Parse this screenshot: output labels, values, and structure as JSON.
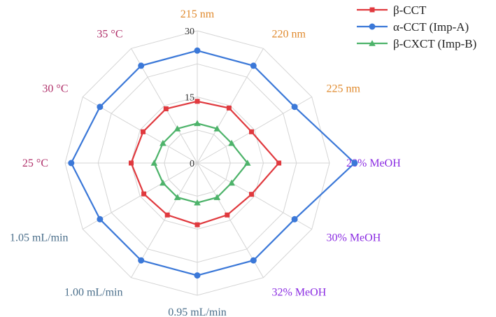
{
  "chart_data": {
    "type": "radar",
    "axes": [
      {
        "label": "215 nm",
        "color": "#E08A2E"
      },
      {
        "label": "220 nm",
        "color": "#E08A2E"
      },
      {
        "label": "225 nm",
        "color": "#E08A2E"
      },
      {
        "label": "28% MeOH",
        "color": "#8A2BE2"
      },
      {
        "label": "30% MeOH",
        "color": "#8A2BE2"
      },
      {
        "label": "32% MeOH",
        "color": "#8A2BE2"
      },
      {
        "label": "0.95 mL/min",
        "color": "#4A6E8A"
      },
      {
        "label": "1.00 mL/min",
        "color": "#4A6E8A"
      },
      {
        "label": "1.05 mL/min",
        "color": "#4A6E8A"
      },
      {
        "label": "25 °C",
        "color": "#B0306A"
      },
      {
        "label": "30 °C",
        "color": "#B0306A"
      },
      {
        "label": "35 °C",
        "color": "#B0306A"
      }
    ],
    "range": [
      0,
      30
    ],
    "ticks": [
      0,
      15,
      30
    ],
    "grid_rings": [
      7.5,
      15,
      22.5,
      30
    ],
    "series": [
      {
        "name": "β-CCT",
        "color": "#E0393E",
        "marker": "square",
        "values": [
          14.0,
          14.4,
          14.2,
          18.5,
          14.2,
          13.6,
          14.0,
          13.6,
          14.0,
          15.0,
          14.2,
          14.2
        ]
      },
      {
        "name": "α-CCT (Imp-A)",
        "color": "#3B78D8",
        "marker": "circle",
        "values": [
          25.5,
          25.5,
          25.5,
          35.7,
          25.5,
          25.5,
          25.5,
          25.5,
          25.5,
          28.6,
          25.5,
          25.5
        ]
      },
      {
        "name": "β-CXCT (Imp-B)",
        "color": "#4DB36A",
        "marker": "triangle",
        "values": [
          9.0,
          9.0,
          9.0,
          11.4,
          9.0,
          9.0,
          9.0,
          9.0,
          9.0,
          9.8,
          9.0,
          9.0
        ]
      }
    ],
    "legend": "top-right"
  }
}
